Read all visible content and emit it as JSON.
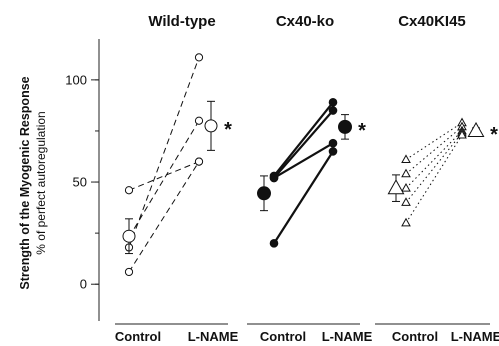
{
  "chart_data": {
    "type": "scatter",
    "ylabel": "Strength of the Myogenic Response",
    "ylabel_sub": "% of perfect autoregulation",
    "ylim": [
      -18,
      120
    ],
    "yticks": [
      "0",
      "50",
      "100"
    ],
    "ytick_values": [
      0,
      50,
      100
    ],
    "panels": [
      {
        "title": "Wild-type",
        "marker": "circle",
        "line_style": "dashed",
        "categories": [
          "Control",
          "L-NAME"
        ],
        "pairs": [
          [
            46,
            60
          ],
          [
            23,
            80
          ],
          [
            18,
            111
          ],
          [
            6,
            60
          ]
        ],
        "means": [
          23.5,
          77.5
        ],
        "errors": [
          8.5,
          12
        ],
        "significant_label": "*"
      },
      {
        "title": "Cx40-ko",
        "marker": "filled-circle",
        "line_style": "solid",
        "categories": [
          "Control",
          "L-NAME"
        ],
        "pairs": [
          [
            53,
            89
          ],
          [
            52,
            85
          ],
          [
            52,
            69
          ],
          [
            20,
            65
          ]
        ],
        "means": [
          44.5,
          77
        ],
        "errors": [
          8.5,
          6
        ],
        "significant_label": "*"
      },
      {
        "title": "Cx40KI45",
        "marker": "triangle",
        "line_style": "dotted",
        "categories": [
          "Control",
          "L-NAME"
        ],
        "pairs": [
          [
            61,
            79
          ],
          [
            54,
            77
          ],
          [
            47,
            75
          ],
          [
            40,
            74
          ],
          [
            30,
            73
          ]
        ],
        "means": [
          47,
          75
        ],
        "errors": [
          6.5,
          1.5
        ],
        "significant_label": "*"
      }
    ]
  }
}
